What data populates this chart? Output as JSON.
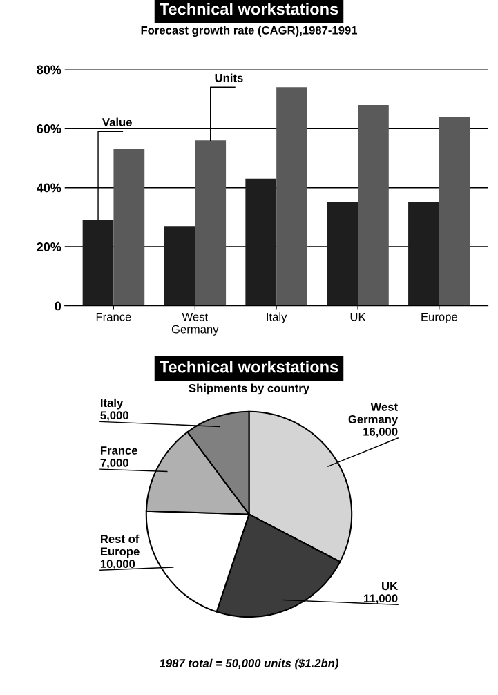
{
  "chart_data": [
    {
      "type": "bar",
      "title": "Technical workstations",
      "subtitle": "Forecast growth rate (CAGR),1987-1991",
      "categories": [
        "France",
        "West\nGermany",
        "Italy",
        "UK",
        "Europe"
      ],
      "series": [
        {
          "name": "Value",
          "color": "#1e1e1e",
          "values": [
            29,
            27,
            43,
            35,
            35
          ]
        },
        {
          "name": "Units",
          "color": "#5a5a5a",
          "values": [
            53,
            56,
            74,
            68,
            64
          ]
        }
      ],
      "ylim": [
        0,
        80
      ],
      "yticks": [
        0,
        {
          "value": 20,
          "label": "20%"
        },
        {
          "value": 40,
          "label": "40%"
        },
        {
          "value": 60,
          "label": "60%"
        },
        {
          "value": 80,
          "label": "80%"
        }
      ],
      "grid": "y",
      "legend": false
    },
    {
      "type": "pie",
      "title": "Technical workstations",
      "subtitle": "Shipments by country",
      "categories": [
        "West\nGermany",
        "UK",
        "Rest of\nEurope",
        "France",
        "Italy"
      ],
      "values": [
        16000,
        11000,
        10000,
        7000,
        5000
      ],
      "value_labels": [
        "16,000",
        "11,000",
        "10,000",
        "7,000",
        "5,000"
      ],
      "colors": [
        "#d4d4d4",
        "#3c3c3c",
        "#ffffff",
        "#b0b0b0",
        "#808080"
      ],
      "annotations": [
        "1987 total = 50,000 units ($1.2bn)"
      ]
    }
  ]
}
